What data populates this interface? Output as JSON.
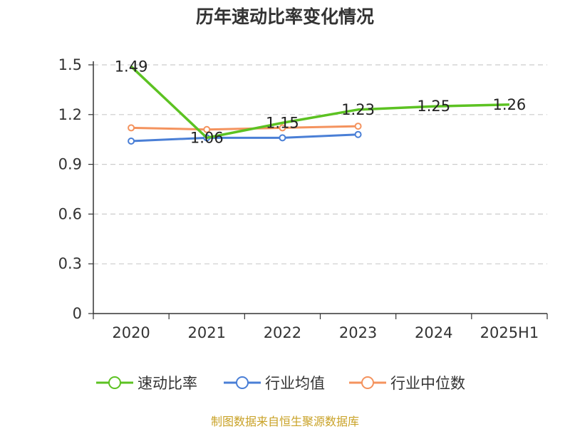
{
  "chart_data": {
    "type": "line",
    "title": "历年速动比率变化情况",
    "categories": [
      "2020",
      "2021",
      "2022",
      "2023",
      "2024",
      "2025H1"
    ],
    "y_ticks": [
      "0",
      "0.3",
      "0.6",
      "0.9",
      "1.2",
      "1.5"
    ],
    "ylim": [
      0,
      1.5
    ],
    "grid": true,
    "legend_position": "bottom",
    "series": [
      {
        "name": "速动比率",
        "color": "#5cc222",
        "values": [
          1.49,
          1.06,
          1.15,
          1.23,
          1.25,
          1.26
        ],
        "labels": [
          "1.49",
          "1.06",
          "1.15",
          "1.23",
          "1.25",
          "1.26"
        ],
        "show_markers": false
      },
      {
        "name": "行业均值",
        "color": "#4a7fd6",
        "values": [
          1.04,
          1.06,
          1.06,
          1.08,
          null,
          null
        ],
        "show_markers": true
      },
      {
        "name": "行业中位数",
        "color": "#f4935e",
        "values": [
          1.12,
          1.11,
          1.12,
          1.13,
          null,
          null
        ],
        "show_markers": true
      }
    ]
  },
  "source": "制图数据来自恒生聚源数据库"
}
